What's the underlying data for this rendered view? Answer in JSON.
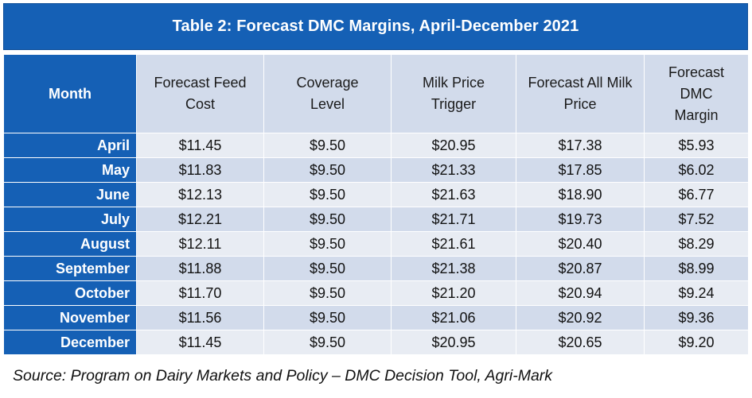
{
  "title": "Table 2: Forecast DMC Margins, April-December 2021",
  "headers": [
    "Month",
    "Forecast Feed Cost",
    "Coverage Level",
    "Milk Price Trigger",
    "Forecast All Milk Price",
    "Forecast DMC Margin"
  ],
  "rows": [
    {
      "month": "April",
      "feed_cost": "$11.45",
      "coverage": "$9.50",
      "trigger": "$20.95",
      "all_milk": "$17.38",
      "margin": "$5.93"
    },
    {
      "month": "May",
      "feed_cost": "$11.83",
      "coverage": "$9.50",
      "trigger": "$21.33",
      "all_milk": "$17.85",
      "margin": "$6.02"
    },
    {
      "month": "June",
      "feed_cost": "$12.13",
      "coverage": "$9.50",
      "trigger": "$21.63",
      "all_milk": "$18.90",
      "margin": "$6.77"
    },
    {
      "month": "July",
      "feed_cost": "$12.21",
      "coverage": "$9.50",
      "trigger": "$21.71",
      "all_milk": "$19.73",
      "margin": "$7.52"
    },
    {
      "month": "August",
      "feed_cost": "$12.11",
      "coverage": "$9.50",
      "trigger": "$21.61",
      "all_milk": "$20.40",
      "margin": "$8.29"
    },
    {
      "month": "September",
      "feed_cost": "$11.88",
      "coverage": "$9.50",
      "trigger": "$21.38",
      "all_milk": "$20.87",
      "margin": "$8.99"
    },
    {
      "month": "October",
      "feed_cost": "$11.70",
      "coverage": "$9.50",
      "trigger": "$21.20",
      "all_milk": "$20.94",
      "margin": "$9.24"
    },
    {
      "month": "November",
      "feed_cost": "$11.56",
      "coverage": "$9.50",
      "trigger": "$21.06",
      "all_milk": "$20.92",
      "margin": "$9.36"
    },
    {
      "month": "December",
      "feed_cost": "$11.45",
      "coverage": "$9.50",
      "trigger": "$20.95",
      "all_milk": "$20.65",
      "margin": "$9.20"
    }
  ],
  "source": "Source: Program on Dairy Markets and Policy – DMC Decision Tool, Agri-Mark",
  "colors": {
    "header_blue": "#1560b5",
    "row_light": "#e8ecf3",
    "row_dark": "#d2dbeb"
  }
}
